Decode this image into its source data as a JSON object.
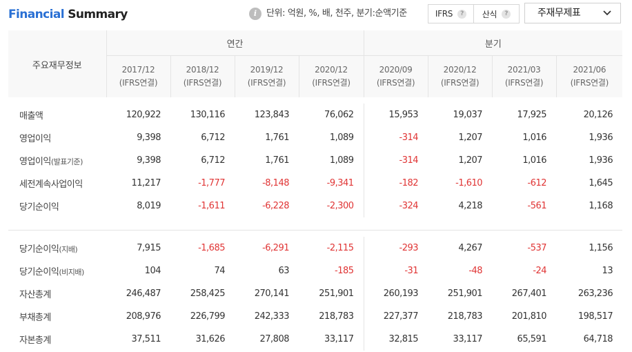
{
  "header": {
    "title_part1": "Financial",
    "title_part2": "Summary",
    "info_icon": "info-icon",
    "units_text": "단위: 억원, %, 배, 천주, 분기:순액기준",
    "toggle": [
      "IFRS",
      "산식"
    ],
    "help_icon_glyph": "?",
    "select_label": "주재무제표"
  },
  "colors": {
    "accent": "#2a70d4",
    "negative": "#e03434",
    "header_bg": "#f8f8f8",
    "border": "#e4e4e4"
  },
  "table": {
    "corner_label": "주요재무정보",
    "groups": [
      "연간",
      "분기"
    ],
    "periods": [
      {
        "date": "2017/12",
        "basis": "(IFRS연결)"
      },
      {
        "date": "2018/12",
        "basis": "(IFRS연결)"
      },
      {
        "date": "2019/12",
        "basis": "(IFRS연결)"
      },
      {
        "date": "2020/12",
        "basis": "(IFRS연결)"
      },
      {
        "date": "2020/09",
        "basis": "(IFRS연결)"
      },
      {
        "date": "2020/12",
        "basis": "(IFRS연결)"
      },
      {
        "date": "2021/03",
        "basis": "(IFRS연결)"
      },
      {
        "date": "2021/06",
        "basis": "(IFRS연결)"
      }
    ],
    "section1": [
      {
        "label": "매출액",
        "label_small": "",
        "values": [
          "120,922",
          "130,116",
          "123,843",
          "76,062",
          "15,953",
          "19,037",
          "17,925",
          "20,126"
        ]
      },
      {
        "label": "영업이익",
        "label_small": "",
        "values": [
          "9,398",
          "6,712",
          "1,761",
          "1,089",
          "-314",
          "1,207",
          "1,016",
          "1,936"
        ]
      },
      {
        "label": "영업이익",
        "label_small": "(발표기준)",
        "values": [
          "9,398",
          "6,712",
          "1,761",
          "1,089",
          "-314",
          "1,207",
          "1,016",
          "1,936"
        ]
      },
      {
        "label": "세전계속사업이익",
        "label_small": "",
        "values": [
          "11,217",
          "-1,777",
          "-8,148",
          "-9,341",
          "-182",
          "-1,610",
          "-612",
          "1,645"
        ]
      },
      {
        "label": "당기순이익",
        "label_small": "",
        "values": [
          "8,019",
          "-1,611",
          "-6,228",
          "-2,300",
          "-324",
          "4,218",
          "-561",
          "1,168"
        ]
      }
    ],
    "section2": [
      {
        "label": "당기순이익",
        "label_small": "(지배)",
        "values": [
          "7,915",
          "-1,685",
          "-6,291",
          "-2,115",
          "-293",
          "4,267",
          "-537",
          "1,156"
        ]
      },
      {
        "label": "당기순이익",
        "label_small": "(비지배)",
        "values": [
          "104",
          "74",
          "63",
          "-185",
          "-31",
          "-48",
          "-24",
          "13"
        ]
      },
      {
        "label": "자산총계",
        "label_small": "",
        "values": [
          "246,487",
          "258,425",
          "270,141",
          "251,901",
          "260,193",
          "251,901",
          "267,401",
          "263,236"
        ]
      },
      {
        "label": "부채총계",
        "label_small": "",
        "values": [
          "208,976",
          "226,799",
          "242,333",
          "218,783",
          "227,377",
          "218,783",
          "201,810",
          "198,517"
        ]
      },
      {
        "label": "자본총계",
        "label_small": "",
        "values": [
          "37,511",
          "31,626",
          "27,808",
          "33,117",
          "32,815",
          "33,117",
          "65,591",
          "64,718"
        ]
      }
    ]
  }
}
